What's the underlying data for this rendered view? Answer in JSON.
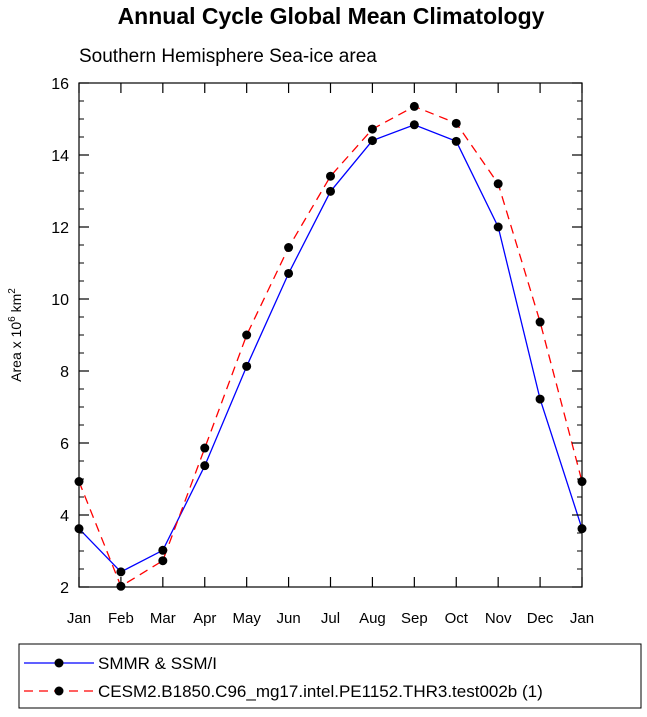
{
  "chart_data": {
    "type": "line",
    "title": "Annual Cycle Global Mean Climatology",
    "subtitle": "Southern Hemisphere Sea-ice area",
    "ylabel": {
      "prefix": "Area x 10",
      "exp1": "6",
      "mid": " km",
      "exp2": "2"
    },
    "ylim": [
      2,
      16
    ],
    "yticks": [
      2,
      4,
      6,
      8,
      10,
      12,
      14,
      16
    ],
    "categories": [
      "Jan",
      "Feb",
      "Mar",
      "Apr",
      "May",
      "Jun",
      "Jul",
      "Aug",
      "Sep",
      "Oct",
      "Nov",
      "Dec",
      "Jan"
    ],
    "grid": false,
    "legend_position": "bottom",
    "series": [
      {
        "name": "SMMR & SSM/I",
        "color": "#0000ff",
        "dash": "solid",
        "values": [
          3.62,
          2.42,
          3.02,
          5.37,
          8.13,
          10.71,
          12.99,
          14.4,
          14.84,
          14.38,
          12.0,
          7.22,
          3.62
        ]
      },
      {
        "name": "CESM2.B1850.C96_mg17.intel.PE1152.THR3.test002b (1)",
        "color": "#ff0000",
        "dash": "dashed",
        "values": [
          4.93,
          2.02,
          2.73,
          5.86,
          9.0,
          11.43,
          13.41,
          14.72,
          15.35,
          14.88,
          13.2,
          9.36,
          4.93
        ]
      }
    ]
  }
}
